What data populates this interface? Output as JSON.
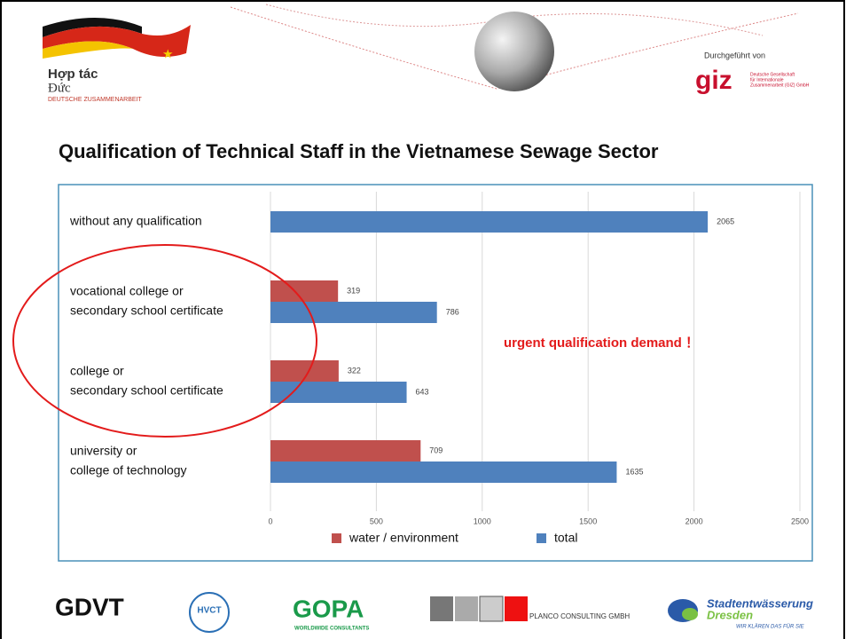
{
  "header": {
    "partner_name": "Hợp tác",
    "partner_name_2": "Đức",
    "partner_sub": "DEUTSCHE ZUSAMMENARBEIT",
    "implemented_by": "Durchgeführt von",
    "giz": "giz",
    "giz_line_1": "Deutsche Gesellschaft",
    "giz_line_2": "für Internationale",
    "giz_line_3": "Zusammenarbeit (GIZ) GmbH"
  },
  "chart_data": {
    "type": "bar",
    "orientation": "horizontal",
    "title": "Qualification of Technical Staff in the Vietnamese Sewage Sector",
    "categories": [
      [
        "without any qualification"
      ],
      [
        "vocational college or",
        "secondary school certificate"
      ],
      [
        "college or",
        "secondary school certificate"
      ],
      [
        "university or",
        "college of technology"
      ]
    ],
    "series": [
      {
        "name": "water / environment",
        "color": "#c0504d",
        "values": [
          null,
          319,
          322,
          709
        ]
      },
      {
        "name": "total",
        "color": "#4f81bd",
        "values": [
          2065,
          786,
          643,
          1635
        ]
      }
    ],
    "xlim": [
      0,
      2500
    ],
    "xticks": [
      0,
      500,
      1000,
      1500,
      2000,
      2500
    ],
    "grid": true,
    "annotation": "urgent qualification demand ！"
  },
  "footer": {
    "gdvt": "GDVT",
    "hvct": "HVCT",
    "gopa": "GOPA",
    "gopa_sub": "WORLDWIDE CONSULTANTS",
    "planco": "PLANCO CONSULTING GMBH",
    "sew_1": "Stadtentwässerung",
    "sew_2": "Dresden",
    "sew_3": "WIR KLÄREN DAS FÜR SIE"
  }
}
